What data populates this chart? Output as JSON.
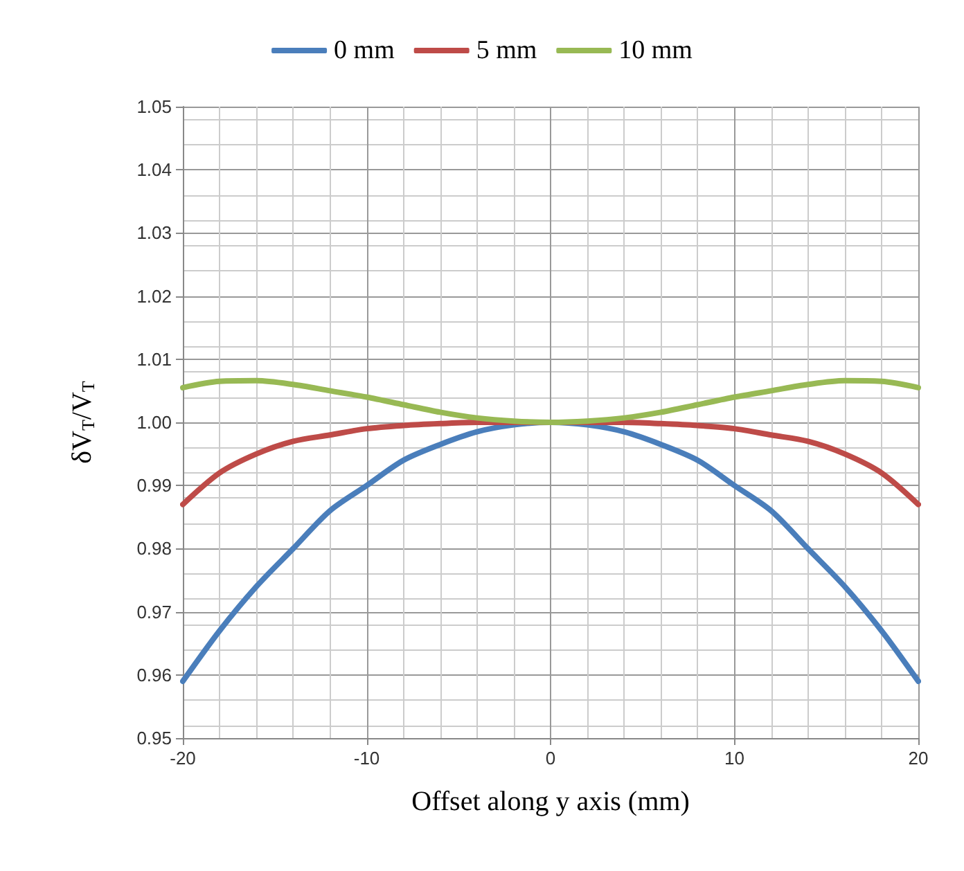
{
  "chart_data": {
    "type": "line",
    "xlabel": "Offset along y axis (mm)",
    "ylabel": "δV$_{T}$/V$_{T}$",
    "x": [
      -20,
      -18,
      -16,
      -14,
      -12,
      -10,
      -8,
      -6,
      -4,
      -2,
      0,
      2,
      4,
      6,
      8,
      10,
      12,
      14,
      16,
      18,
      20
    ],
    "series": [
      {
        "name": "0 mm",
        "color": "#4a7ebb",
        "values": [
          0.959,
          0.967,
          0.974,
          0.98,
          0.986,
          0.99,
          0.994,
          0.9965,
          0.9985,
          0.9996,
          1.0,
          0.9996,
          0.9985,
          0.9965,
          0.994,
          0.99,
          0.986,
          0.98,
          0.974,
          0.967,
          0.959
        ]
      },
      {
        "name": "5 mm",
        "color": "#be4b48",
        "values": [
          0.987,
          0.992,
          0.995,
          0.997,
          0.998,
          0.999,
          0.9995,
          0.9998,
          1.0,
          1.0,
          1.0,
          1.0,
          1.0,
          0.9998,
          0.9995,
          0.999,
          0.998,
          0.997,
          0.995,
          0.992,
          0.987
        ]
      },
      {
        "name": "10 mm",
        "color": "#98b954",
        "values": [
          1.0055,
          1.0065,
          1.0066,
          1.006,
          1.005,
          1.004,
          1.0028,
          1.0016,
          1.0007,
          1.0002,
          1.0,
          1.0002,
          1.0007,
          1.0016,
          1.0028,
          1.004,
          1.005,
          1.006,
          1.0066,
          1.0065,
          1.0055
        ]
      }
    ],
    "xlim": [
      -20,
      20
    ],
    "xticks": [
      -20,
      -10,
      0,
      10,
      20
    ],
    "ylim": [
      0.95,
      1.05
    ],
    "yticks": [
      {
        "value": 0.95,
        "label": "0.95"
      },
      {
        "value": 0.96,
        "label": "0.96"
      },
      {
        "value": 0.97,
        "label": "0.97"
      },
      {
        "value": 0.98,
        "label": "0.98"
      },
      {
        "value": 0.99,
        "label": "0.99"
      },
      {
        "value": 1.0,
        "label": "1.00"
      },
      {
        "value": 1.01,
        "label": "1.01"
      },
      {
        "value": 1.02,
        "label": "1.02"
      },
      {
        "value": 1.03,
        "label": "1.03"
      },
      {
        "value": 1.04,
        "label": "1.04"
      },
      {
        "value": 1.05,
        "label": "1.05"
      }
    ],
    "grid": true,
    "legend": "top",
    "marker": "none",
    "line_style": "solid"
  }
}
